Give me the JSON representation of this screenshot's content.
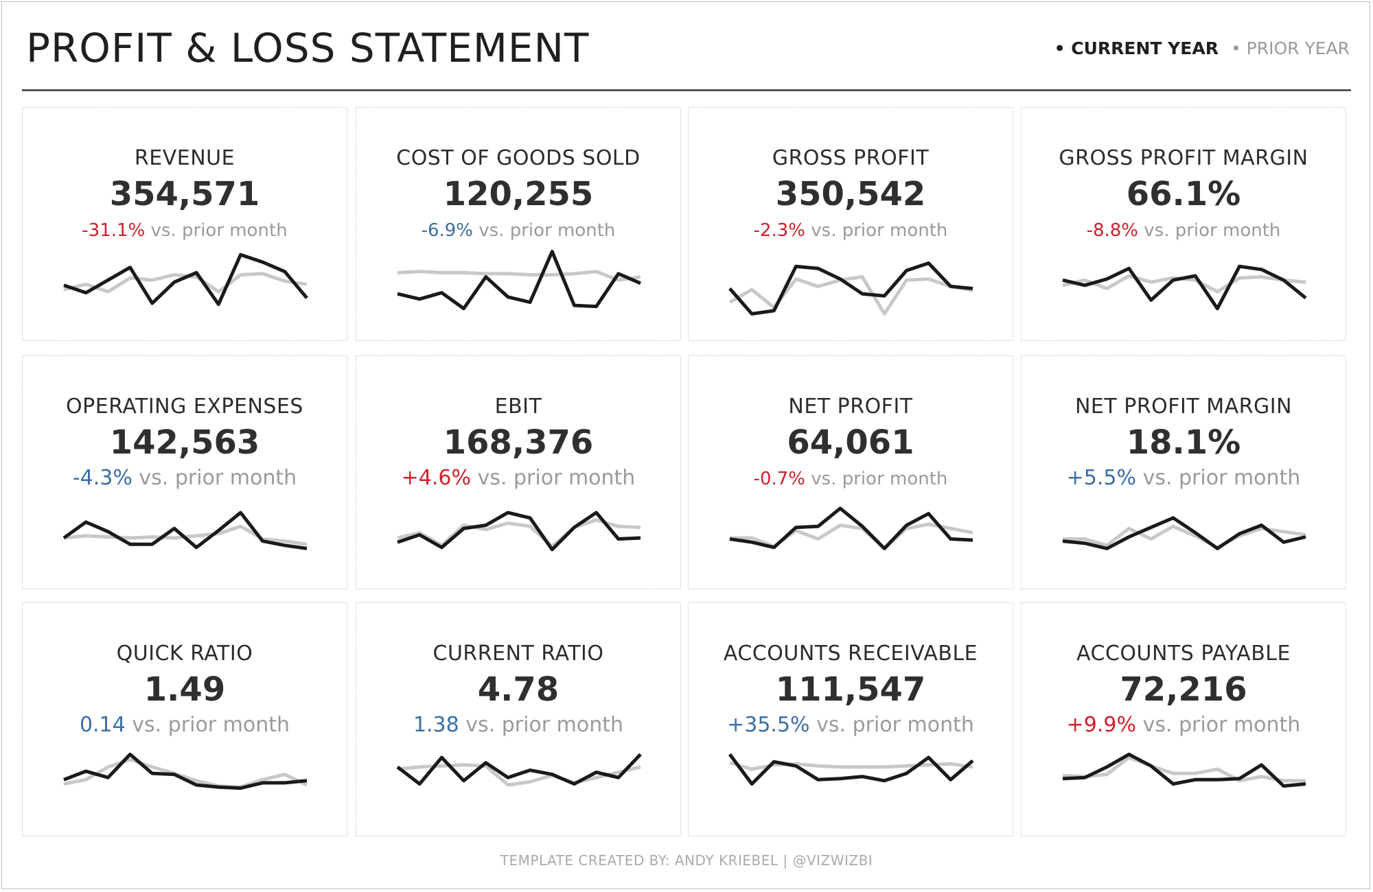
{
  "header": {
    "title": "PROFIT & LOSS STATEMENT",
    "legend_current": "• CURRENT YEAR",
    "legend_prior": "• PRIOR YEAR"
  },
  "colors": {
    "current": "#1a1a1a",
    "prior": "#c8c8c8",
    "negative": "#d0202b",
    "positive": "#3b6ea5"
  },
  "footer": {
    "credit": "TEMPLATE CREATED BY: ANDY KRIEBEL | @VIZWIZBI"
  },
  "chart_data": [
    {
      "type": "line",
      "title": "REVENUE",
      "value": "354,571",
      "delta": "-31.1%",
      "delta_color": "neg",
      "vs": "vs. prior month",
      "series": [
        {
          "name": "Current Year",
          "values": [
            55,
            48,
            60,
            72,
            38,
            58,
            67,
            37,
            84,
            77,
            68,
            43
          ]
        },
        {
          "name": "Prior Year",
          "values": [
            51,
            56,
            49,
            62,
            60,
            65,
            63,
            49,
            65,
            66,
            59,
            56
          ]
        }
      ]
    },
    {
      "type": "line",
      "title": "COST OF GOODS SOLD",
      "value": "120,255",
      "delta": "-6.9%",
      "delta_color": "pos",
      "vs": "vs. prior month",
      "series": [
        {
          "name": "Current Year",
          "values": [
            47,
            42,
            48,
            33,
            63,
            44,
            39,
            87,
            36,
            35,
            66,
            57
          ]
        },
        {
          "name": "Prior Year",
          "values": [
            67,
            68,
            67,
            67,
            66,
            66,
            65,
            65,
            66,
            68,
            60,
            63
          ]
        }
      ]
    },
    {
      "type": "line",
      "title": "GROSS PROFIT",
      "value": "350,542",
      "delta": "-2.3%",
      "delta_color": "neg",
      "vs": "vs. prior month",
      "series": [
        {
          "name": "Current Year",
          "values": [
            52,
            28,
            31,
            73,
            71,
            61,
            47,
            45,
            69,
            76,
            54,
            52
          ]
        },
        {
          "name": "Prior Year",
          "values": [
            39,
            51,
            34,
            61,
            54,
            60,
            63,
            28,
            60,
            61,
            54,
            50
          ]
        }
      ]
    },
    {
      "type": "line",
      "title": "GROSS PROFIT MARGIN",
      "value": "66.1%",
      "delta": "-8.8%",
      "delta_color": "neg",
      "vs": "vs. prior month",
      "series": [
        {
          "name": "Current Year",
          "values": [
            60,
            55,
            61,
            71,
            41,
            60,
            64,
            33,
            73,
            70,
            60,
            43
          ]
        },
        {
          "name": "Prior Year",
          "values": [
            55,
            60,
            52,
            64,
            58,
            62,
            60,
            49,
            62,
            63,
            60,
            58
          ]
        }
      ]
    },
    {
      "type": "line",
      "title": "OPERATING EXPENSES",
      "value": "142,563",
      "delta": "-4.3%",
      "delta_color": "pos",
      "vs": "vs. prior month",
      "big": true,
      "series": [
        {
          "name": "Current Year",
          "values": [
            51,
            66,
            57,
            45,
            45,
            60,
            42,
            58,
            75,
            48,
            44,
            41
          ]
        },
        {
          "name": "Prior Year",
          "values": [
            51,
            53,
            52,
            51,
            52,
            51,
            53,
            55,
            62,
            50,
            48,
            45
          ]
        }
      ]
    },
    {
      "type": "line",
      "title": "EBIT",
      "value": "168,376",
      "delta": "+4.6%",
      "delta_color": "neg",
      "vs": "vs. prior month",
      "big": true,
      "series": [
        {
          "name": "Current Year",
          "values": [
            47,
            54,
            42,
            60,
            63,
            75,
            70,
            40,
            61,
            75,
            50,
            51
          ]
        },
        {
          "name": "Prior Year",
          "values": [
            51,
            56,
            44,
            63,
            59,
            65,
            62,
            43,
            61,
            68,
            62,
            61
          ]
        }
      ]
    },
    {
      "type": "line",
      "title": "NET PROFIT",
      "value": "64,061",
      "delta": "-0.7%",
      "delta_color": "neg",
      "vs": "vs. prior month",
      "series": [
        {
          "name": "Current Year",
          "values": [
            50,
            47,
            42,
            61,
            62,
            79,
            62,
            41,
            63,
            74,
            50,
            49
          ]
        },
        {
          "name": "Prior Year",
          "values": [
            51,
            51,
            43,
            58,
            50,
            63,
            60,
            41,
            60,
            64,
            60,
            56
          ]
        }
      ]
    },
    {
      "type": "line",
      "title": "NET PROFIT MARGIN",
      "value": "18.1%",
      "delta": "+5.5%",
      "delta_color": "pos",
      "vs": "vs. prior month",
      "big": true,
      "series": [
        {
          "name": "Current Year",
          "values": [
            48,
            46,
            41,
            52,
            61,
            70,
            56,
            41,
            55,
            63,
            47,
            52
          ]
        },
        {
          "name": "Prior Year",
          "values": [
            50,
            50,
            44,
            60,
            50,
            62,
            53,
            42,
            53,
            60,
            57,
            54
          ]
        }
      ]
    },
    {
      "type": "line",
      "title": "QUICK RATIO",
      "value": "1.49",
      "delta": "0.14",
      "delta_color": "pos",
      "vs": "vs. prior month",
      "big": true,
      "series": [
        {
          "name": "Current Year",
          "values": [
            56,
            64,
            58,
            80,
            62,
            61,
            51,
            49,
            48,
            53,
            53,
            55
          ]
        },
        {
          "name": "Prior Year",
          "values": [
            52,
            56,
            68,
            75,
            68,
            62,
            55,
            50,
            49,
            56,
            61,
            51
          ]
        }
      ]
    },
    {
      "type": "line",
      "title": "CURRENT RATIO",
      "value": "4.78",
      "delta": "1.38",
      "delta_color": "pos",
      "vs": "vs. prior month",
      "big": true,
      "series": [
        {
          "name": "Current Year",
          "values": [
            68,
            52,
            77,
            55,
            72,
            58,
            65,
            61,
            52,
            63,
            58,
            80
          ]
        },
        {
          "name": "Prior Year",
          "values": [
            66,
            68,
            69,
            70,
            69,
            51,
            54,
            60,
            53,
            58,
            63,
            68
          ]
        }
      ]
    },
    {
      "type": "line",
      "title": "ACCOUNTS RECEIVABLE",
      "value": "111,547",
      "delta": "+35.5%",
      "delta_color": "pos",
      "vs": "vs. prior month",
      "big": true,
      "series": [
        {
          "name": "Current Year",
          "values": [
            80,
            52,
            73,
            69,
            56,
            57,
            59,
            55,
            62,
            77,
            56,
            74
          ]
        },
        {
          "name": "Prior Year",
          "values": [
            72,
            66,
            70,
            71,
            69,
            68,
            68,
            68,
            69,
            70,
            71,
            68
          ]
        }
      ]
    },
    {
      "type": "line",
      "title": "ACCOUNTS PAYABLE",
      "value": "72,216",
      "delta": "+9.9%",
      "delta_color": "neg",
      "vs": "vs. prior month",
      "big": true,
      "series": [
        {
          "name": "Current Year",
          "values": [
            57,
            58,
            68,
            80,
            69,
            52,
            56,
            56,
            57,
            70,
            50,
            52
          ]
        },
        {
          "name": "Prior Year",
          "values": [
            60,
            59,
            61,
            77,
            69,
            62,
            62,
            66,
            55,
            59,
            55,
            55
          ]
        }
      ]
    }
  ]
}
